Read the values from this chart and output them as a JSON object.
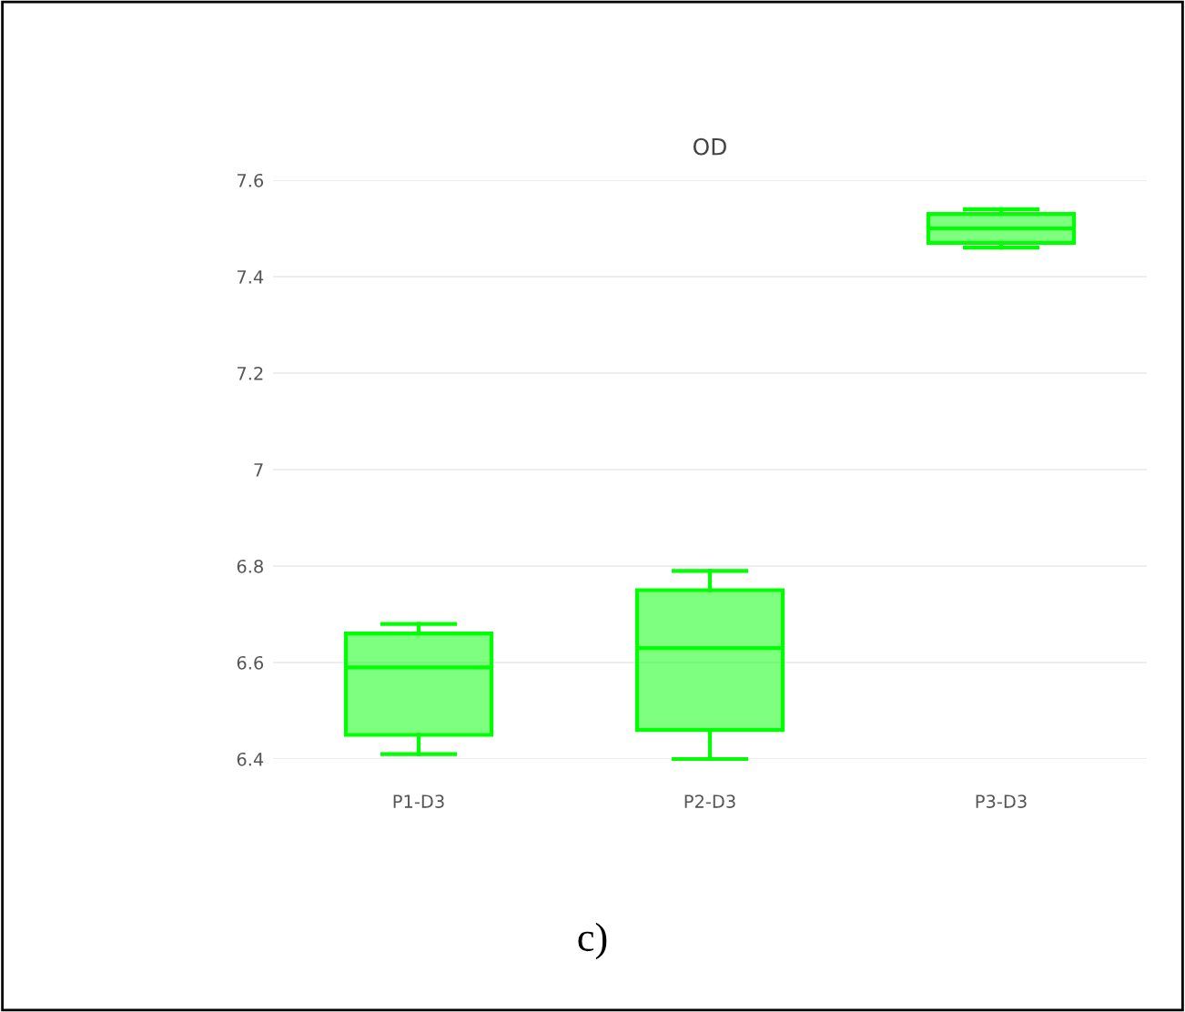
{
  "chart_data": {
    "type": "box",
    "title": "OD",
    "categories": [
      "P1-D3",
      "P2-D3",
      "P3-D3"
    ],
    "boxes": [
      {
        "low": 6.41,
        "q1": 6.45,
        "median": 6.59,
        "q3": 6.66,
        "high": 6.68
      },
      {
        "low": 6.4,
        "q1": 6.46,
        "median": 6.63,
        "q3": 6.75,
        "high": 6.79
      },
      {
        "low": 7.46,
        "q1": 7.47,
        "median": 7.5,
        "q3": 7.53,
        "high": 7.54
      }
    ],
    "color": "#00ff00",
    "ylim": [
      6.4,
      7.6
    ],
    "yticks": [
      6.4,
      6.6,
      6.8,
      7,
      7.2,
      7.4,
      7.6
    ],
    "grid": "y",
    "annotations": [
      "c)"
    ]
  }
}
